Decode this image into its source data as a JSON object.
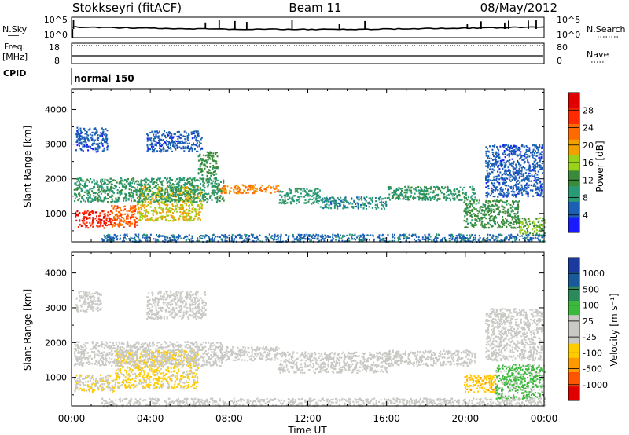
{
  "header": {
    "station": "Stokkseyri (fitACF)",
    "beam": "Beam 11",
    "date": "08/May/2012"
  },
  "ctrl": {
    "nsky_label": "N.Sky",
    "nsky_top": "10^5",
    "nsky_bot": "10^0",
    "nsearch_top": "10^5",
    "nsearch_bot": "10^0",
    "nsearch_label": "N.Search",
    "freq_label": "Freq.",
    "freq_unit": "[MHz]",
    "freq_top": "18",
    "freq_bot": "8",
    "nave_top": "80",
    "nave_bot": "0",
    "nave_label": "Nave",
    "cpid_label": "CPID",
    "cpid_value": "normal 150"
  },
  "colors": {
    "power": [
      "#1a1aff",
      "#1a5fb4",
      "#2a9a76",
      "#3a8a3a",
      "#9ad21a",
      "#f0a000",
      "#ff6a00",
      "#ff2a00",
      "#e00000"
    ],
    "velocity": [
      "#e00000",
      "#ff5500",
      "#ff9900",
      "#ffcc00",
      "#c8c8c4",
      "#c8c8c4",
      "#3cb83c",
      "#2a8a5a",
      "#1a5a9a",
      "#1a3aa0"
    ]
  },
  "chart_data": [
    {
      "type": "heatmap",
      "panel": "power",
      "ylabel": "Slant Range [km]",
      "ylim": [
        180,
        4600
      ],
      "yticks": [
        "1000",
        "2000",
        "3000",
        "4000"
      ],
      "xlim": [
        0,
        24
      ],
      "color_label": "Power [dB]",
      "color_ticks": [
        "4",
        "8",
        "12",
        "16",
        "20",
        "24",
        "28"
      ],
      "color_range": [
        0,
        32
      ],
      "clusters": [
        {
          "x": [
            0.15,
            2.0
          ],
          "y": [
            600,
            1100
          ],
          "value": 28
        },
        {
          "x": [
            2.0,
            3.3
          ],
          "y": [
            620,
            1250
          ],
          "value": 24
        },
        {
          "x": [
            3.3,
            6.6
          ],
          "y": [
            800,
            1800
          ],
          "value": 18
        },
        {
          "x": [
            0.1,
            7.7
          ],
          "y": [
            1350,
            2050
          ],
          "value": 10
        },
        {
          "x": [
            0.2,
            1.8
          ],
          "y": [
            2800,
            3500
          ],
          "value": 5
        },
        {
          "x": [
            7.5,
            10.5
          ],
          "y": [
            1600,
            1850
          ],
          "value": 22
        },
        {
          "x": [
            10.5,
            12.6
          ],
          "y": [
            1300,
            1750
          ],
          "value": 9
        },
        {
          "x": [
            12.6,
            16.0
          ],
          "y": [
            1150,
            1500
          ],
          "value": 8
        },
        {
          "x": [
            16.0,
            20.5
          ],
          "y": [
            1400,
            1800
          ],
          "value": 10
        },
        {
          "x": [
            19.9,
            22.7
          ],
          "y": [
            600,
            1400
          ],
          "value": 12
        },
        {
          "x": [
            22.7,
            24.0
          ],
          "y": [
            400,
            900
          ],
          "value": 14
        },
        {
          "x": [
            6.4,
            7.4
          ],
          "y": [
            2100,
            2800
          ],
          "value": 12
        },
        {
          "x": [
            3.8,
            6.6
          ],
          "y": [
            2800,
            3400
          ],
          "value": 5
        },
        {
          "x": [
            21.0,
            23.9
          ],
          "y": [
            1500,
            3000
          ],
          "value": 5
        },
        {
          "x": [
            1.5,
            24.0
          ],
          "y": [
            200,
            420
          ],
          "value": 6
        }
      ]
    },
    {
      "type": "heatmap",
      "panel": "velocity",
      "ylabel": "Slant Range [km]",
      "ylim": [
        180,
        4600
      ],
      "yticks": [
        "1000",
        "2000",
        "3000",
        "4000"
      ],
      "xlim": [
        0,
        24
      ],
      "xlabel": "Time UT",
      "xticks": [
        "00:00",
        "04:00",
        "08:00",
        "12:00",
        "16:00",
        "20:00",
        "00:00"
      ],
      "color_label": "Velocity [m s⁻¹]",
      "color_ticks": [
        "-1000",
        "-500",
        "-100",
        "-25",
        "25",
        "100",
        "500",
        "1000"
      ],
      "color_range": [
        -1200,
        1200
      ],
      "clusters": [
        {
          "x": [
            0.1,
            2.2
          ],
          "y": [
            600,
            1100
          ],
          "value": -200
        },
        {
          "x": [
            2.2,
            6.4
          ],
          "y": [
            700,
            1800
          ],
          "value": -300
        },
        {
          "x": [
            0.1,
            7.7
          ],
          "y": [
            1350,
            2050
          ],
          "value": 0
        },
        {
          "x": [
            0.2,
            1.5
          ],
          "y": [
            2900,
            3500
          ],
          "value": 0
        },
        {
          "x": [
            3.8,
            6.8
          ],
          "y": [
            2700,
            3500
          ],
          "value": 0
        },
        {
          "x": [
            7.5,
            10.5
          ],
          "y": [
            1500,
            1900
          ],
          "value": 0
        },
        {
          "x": [
            10.5,
            16.0
          ],
          "y": [
            1150,
            1750
          ],
          "value": 0
        },
        {
          "x": [
            16.0,
            20.5
          ],
          "y": [
            1350,
            1800
          ],
          "value": 0
        },
        {
          "x": [
            19.9,
            21.5
          ],
          "y": [
            600,
            1100
          ],
          "value": -400
        },
        {
          "x": [
            21.5,
            24.0
          ],
          "y": [
            400,
            1400
          ],
          "value": 300
        },
        {
          "x": [
            21.0,
            23.9
          ],
          "y": [
            1500,
            3000
          ],
          "value": 0
        },
        {
          "x": [
            1.5,
            24.0
          ],
          "y": [
            200,
            420
          ],
          "value": -60
        }
      ]
    }
  ]
}
